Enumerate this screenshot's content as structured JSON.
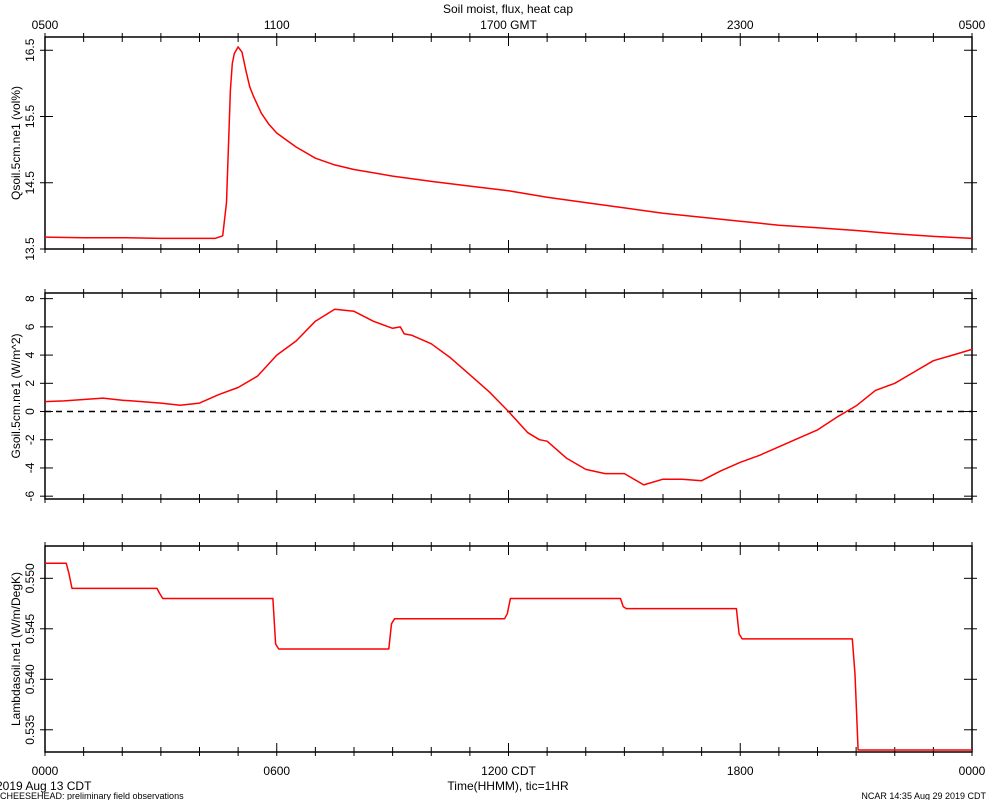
{
  "title": "Soil moist, flux, heat cap",
  "top_axis_ticks": [
    "0500",
    "1100",
    "1700 GMT",
    "2300",
    "0500"
  ],
  "bottom_axis_ticks": [
    "0000",
    "0600",
    "1200 CDT",
    "1800",
    "0000"
  ],
  "xlabel": "Time(HHMM), tic=1HR",
  "date_label": "2019 Aug 13 CDT",
  "footer_left": "CHEESEHEAD: preliminary field observations",
  "footer_right": "NCAR 14:35 Aug 29 2019 CDT",
  "colors": {
    "line": "#ff0000",
    "axis": "#000000",
    "zero_line": "#000000"
  },
  "chart_data": [
    {
      "type": "line",
      "ylabel": "Qsoil.5cm.ne1 (vol%)",
      "ylim": [
        13.5,
        16.7
      ],
      "yticks": [
        13.5,
        14.5,
        15.5,
        16.5
      ],
      "ytick_labels": [
        "13.5",
        "14.5",
        "15.5",
        "16.5"
      ],
      "xlim": [
        0,
        24
      ],
      "series": [
        {
          "x": [
            0,
            1,
            2,
            3,
            4,
            4.4,
            4.6,
            4.7,
            4.8,
            4.85,
            4.9,
            5.0,
            5.1,
            5.2,
            5.3,
            5.4,
            5.6,
            5.8,
            6.0,
            6.5,
            7.0,
            7.5,
            8,
            9,
            10,
            11,
            12,
            13,
            14,
            15,
            16,
            17,
            18,
            19,
            20,
            21,
            22,
            23,
            24
          ],
          "y": [
            13.68,
            13.67,
            13.67,
            13.66,
            13.66,
            13.66,
            13.7,
            14.2,
            15.9,
            16.3,
            16.45,
            16.55,
            16.47,
            16.2,
            15.95,
            15.8,
            15.55,
            15.38,
            15.25,
            15.04,
            14.87,
            14.77,
            14.7,
            14.6,
            14.52,
            14.45,
            14.38,
            14.28,
            14.2,
            14.12,
            14.04,
            13.98,
            13.92,
            13.86,
            13.82,
            13.78,
            13.73,
            13.69,
            13.66
          ]
        }
      ]
    },
    {
      "type": "line",
      "ylabel": "Gsoil.5cm.ne1 (W/m^2)",
      "ylim": [
        -6.2,
        8.4
      ],
      "yticks": [
        -6,
        -4,
        -2,
        0,
        2,
        4,
        6,
        8
      ],
      "ytick_labels": [
        "-6",
        "-4",
        "-2",
        "0",
        "2",
        "4",
        "6",
        "8"
      ],
      "xlim": [
        0,
        24
      ],
      "reference_line": 0,
      "series": [
        {
          "x": [
            0,
            0.5,
            1,
            1.5,
            2,
            2.5,
            3,
            3.5,
            4,
            4.5,
            5,
            5.5,
            6,
            6.5,
            7,
            7.5,
            8,
            8.5,
            9,
            9.2,
            9.3,
            9.5,
            10,
            10.5,
            11,
            11.5,
            12,
            12.5,
            12.8,
            13,
            13.5,
            14,
            14.5,
            15,
            15.5,
            16,
            16.5,
            17,
            17.5,
            18,
            18.5,
            19,
            19.5,
            20,
            20.5,
            21,
            21.5,
            22,
            22.5,
            23,
            23.5,
            24
          ],
          "y": [
            0.7,
            0.75,
            0.85,
            0.95,
            0.8,
            0.7,
            0.6,
            0.45,
            0.6,
            1.2,
            1.7,
            2.5,
            4.0,
            5.0,
            6.4,
            7.25,
            7.1,
            6.4,
            5.9,
            6.0,
            5.5,
            5.4,
            4.8,
            3.8,
            2.6,
            1.4,
            0.0,
            -1.5,
            -2.0,
            -2.1,
            -3.3,
            -4.1,
            -4.4,
            -4.4,
            -5.2,
            -4.8,
            -4.8,
            -4.9,
            -4.2,
            -3.6,
            -3.1,
            -2.5,
            -1.9,
            -1.3,
            -0.4,
            0.4,
            1.5,
            2.0,
            2.8,
            3.6,
            4.0,
            4.4
          ]
        }
      ]
    },
    {
      "type": "line",
      "ylabel": "Lambdasoil.ne1 (W/m/DegK)",
      "ylim": [
        0.5328,
        0.5532
      ],
      "yticks": [
        0.535,
        0.54,
        0.545,
        0.55
      ],
      "ytick_labels": [
        "0.535",
        "0.540",
        "0.545",
        "0.550"
      ],
      "xlim": [
        0,
        24
      ],
      "series": [
        {
          "x": [
            0,
            0.55,
            0.62,
            0.7,
            2.9,
            2.97,
            3.05,
            5.9,
            5.97,
            6.05,
            8.9,
            8.97,
            9.05,
            11.9,
            11.97,
            12.05,
            14.9,
            14.97,
            15.05,
            17.9,
            17.97,
            18.05,
            20.9,
            20.97,
            21.05,
            24
          ],
          "y": [
            0.5515,
            0.5515,
            0.5505,
            0.549,
            0.549,
            0.5485,
            0.548,
            0.548,
            0.5435,
            0.543,
            0.543,
            0.5455,
            0.546,
            0.546,
            0.5465,
            0.548,
            0.548,
            0.5472,
            0.547,
            0.547,
            0.5445,
            0.544,
            0.544,
            0.5405,
            0.533,
            0.533
          ]
        }
      ]
    }
  ]
}
